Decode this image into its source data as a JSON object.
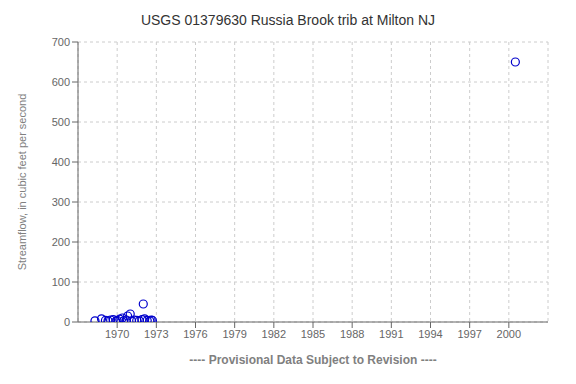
{
  "chart_data": {
    "type": "scatter",
    "title": "USGS 01379630 Russia Brook trib at Milton NJ",
    "ylabel": "Streamflow, in cubic feet per second",
    "xlabel": "---- Provisional Data Subject to Revision ----",
    "x": [
      1968.3,
      1968.8,
      1969.1,
      1969.3,
      1969.5,
      1969.7,
      1969.9,
      1970.0,
      1970.2,
      1970.4,
      1970.5,
      1970.7,
      1970.8,
      1971.0,
      1971.1,
      1971.3,
      1971.5,
      1971.7,
      1971.9,
      1972.0,
      1972.1,
      1972.3,
      1972.5,
      1972.6,
      1972.7,
      2000.5
    ],
    "values": [
      3,
      8,
      4,
      3,
      5,
      6,
      2,
      4,
      7,
      10,
      3,
      5,
      15,
      20,
      3,
      5,
      4,
      3,
      6,
      45,
      8,
      4,
      3,
      5,
      4,
      650
    ],
    "color": "#0000CC",
    "marker": "circle",
    "xlim": [
      1967,
      2003
    ],
    "ylim": [
      0,
      700
    ],
    "xticks": [
      1970,
      1973,
      1976,
      1979,
      1982,
      1985,
      1988,
      1991,
      1994,
      1997,
      2000
    ],
    "yticks": [
      0,
      100,
      200,
      300,
      400,
      500,
      600,
      700
    ],
    "grid": true
  }
}
